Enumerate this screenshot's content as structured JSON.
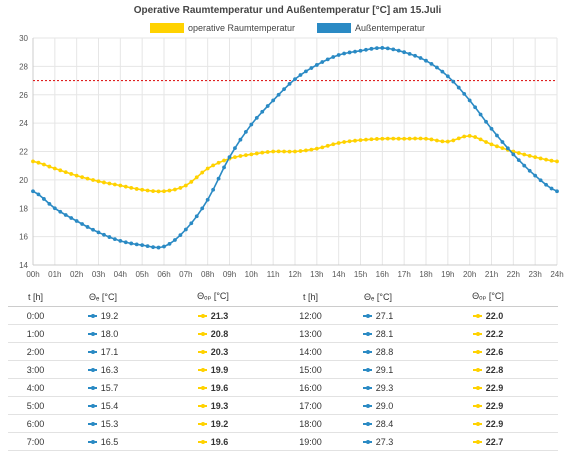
{
  "chart_data": {
    "type": "line",
    "title": "Operative Raumtemperatur und Außentemperatur [°C] am 15.Juli",
    "x": [
      "00h",
      "01h",
      "02h",
      "03h",
      "04h",
      "05h",
      "06h",
      "07h",
      "08h",
      "09h",
      "10h",
      "11h",
      "12h",
      "13h",
      "14h",
      "15h",
      "16h",
      "17h",
      "18h",
      "19h",
      "20h",
      "21h",
      "22h",
      "23h",
      "24h"
    ],
    "ylim": [
      14,
      30
    ],
    "yticks": [
      14,
      16,
      18,
      20,
      22,
      24,
      26,
      28,
      30
    ],
    "grid": true,
    "legend_position": "top-center",
    "reference_line": {
      "value": 27,
      "style": "dotted",
      "color": "#e02020"
    },
    "series": [
      {
        "name": "operative Raumtemperatur",
        "color": "#ffd200",
        "values": [
          21.3,
          20.8,
          20.3,
          19.9,
          19.6,
          19.3,
          19.2,
          19.6,
          20.8,
          21.5,
          21.8,
          22.0,
          22.0,
          22.2,
          22.6,
          22.8,
          22.9,
          22.9,
          22.9,
          22.7,
          23.1,
          22.5,
          22.0,
          21.6,
          21.3
        ]
      },
      {
        "name": "Außentemperatur",
        "color": "#2a8ac4",
        "values": [
          19.2,
          18.0,
          17.1,
          16.3,
          15.7,
          15.4,
          15.3,
          16.5,
          18.6,
          21.6,
          23.9,
          25.6,
          27.1,
          28.1,
          28.8,
          29.1,
          29.3,
          29.0,
          28.4,
          27.3,
          25.6,
          23.6,
          21.8,
          20.3,
          19.2
        ]
      }
    ]
  },
  "table": {
    "headers": {
      "t": "t [h]",
      "te": "Θₑ [°C]",
      "top": "Θₒₚ [°C]"
    },
    "rows": [
      {
        "t1": "0:00",
        "e1": "19.2",
        "op1": "21.3",
        "t2": "12:00",
        "e2": "27.1",
        "op2": "22.0"
      },
      {
        "t1": "1:00",
        "e1": "18.0",
        "op1": "20.8",
        "t2": "13:00",
        "e2": "28.1",
        "op2": "22.2"
      },
      {
        "t1": "2:00",
        "e1": "17.1",
        "op1": "20.3",
        "t2": "14:00",
        "e2": "28.8",
        "op2": "22.6"
      },
      {
        "t1": "3:00",
        "e1": "16.3",
        "op1": "19.9",
        "t2": "15:00",
        "e2": "29.1",
        "op2": "22.8"
      },
      {
        "t1": "4:00",
        "e1": "15.7",
        "op1": "19.6",
        "t2": "16:00",
        "e2": "29.3",
        "op2": "22.9"
      },
      {
        "t1": "5:00",
        "e1": "15.4",
        "op1": "19.3",
        "t2": "17:00",
        "e2": "29.0",
        "op2": "22.9"
      },
      {
        "t1": "6:00",
        "e1": "15.3",
        "op1": "19.2",
        "t2": "18:00",
        "e2": "28.4",
        "op2": "22.9"
      },
      {
        "t1": "7:00",
        "e1": "16.5",
        "op1": "19.6",
        "t2": "19:00",
        "e2": "27.3",
        "op2": "22.7"
      }
    ]
  }
}
